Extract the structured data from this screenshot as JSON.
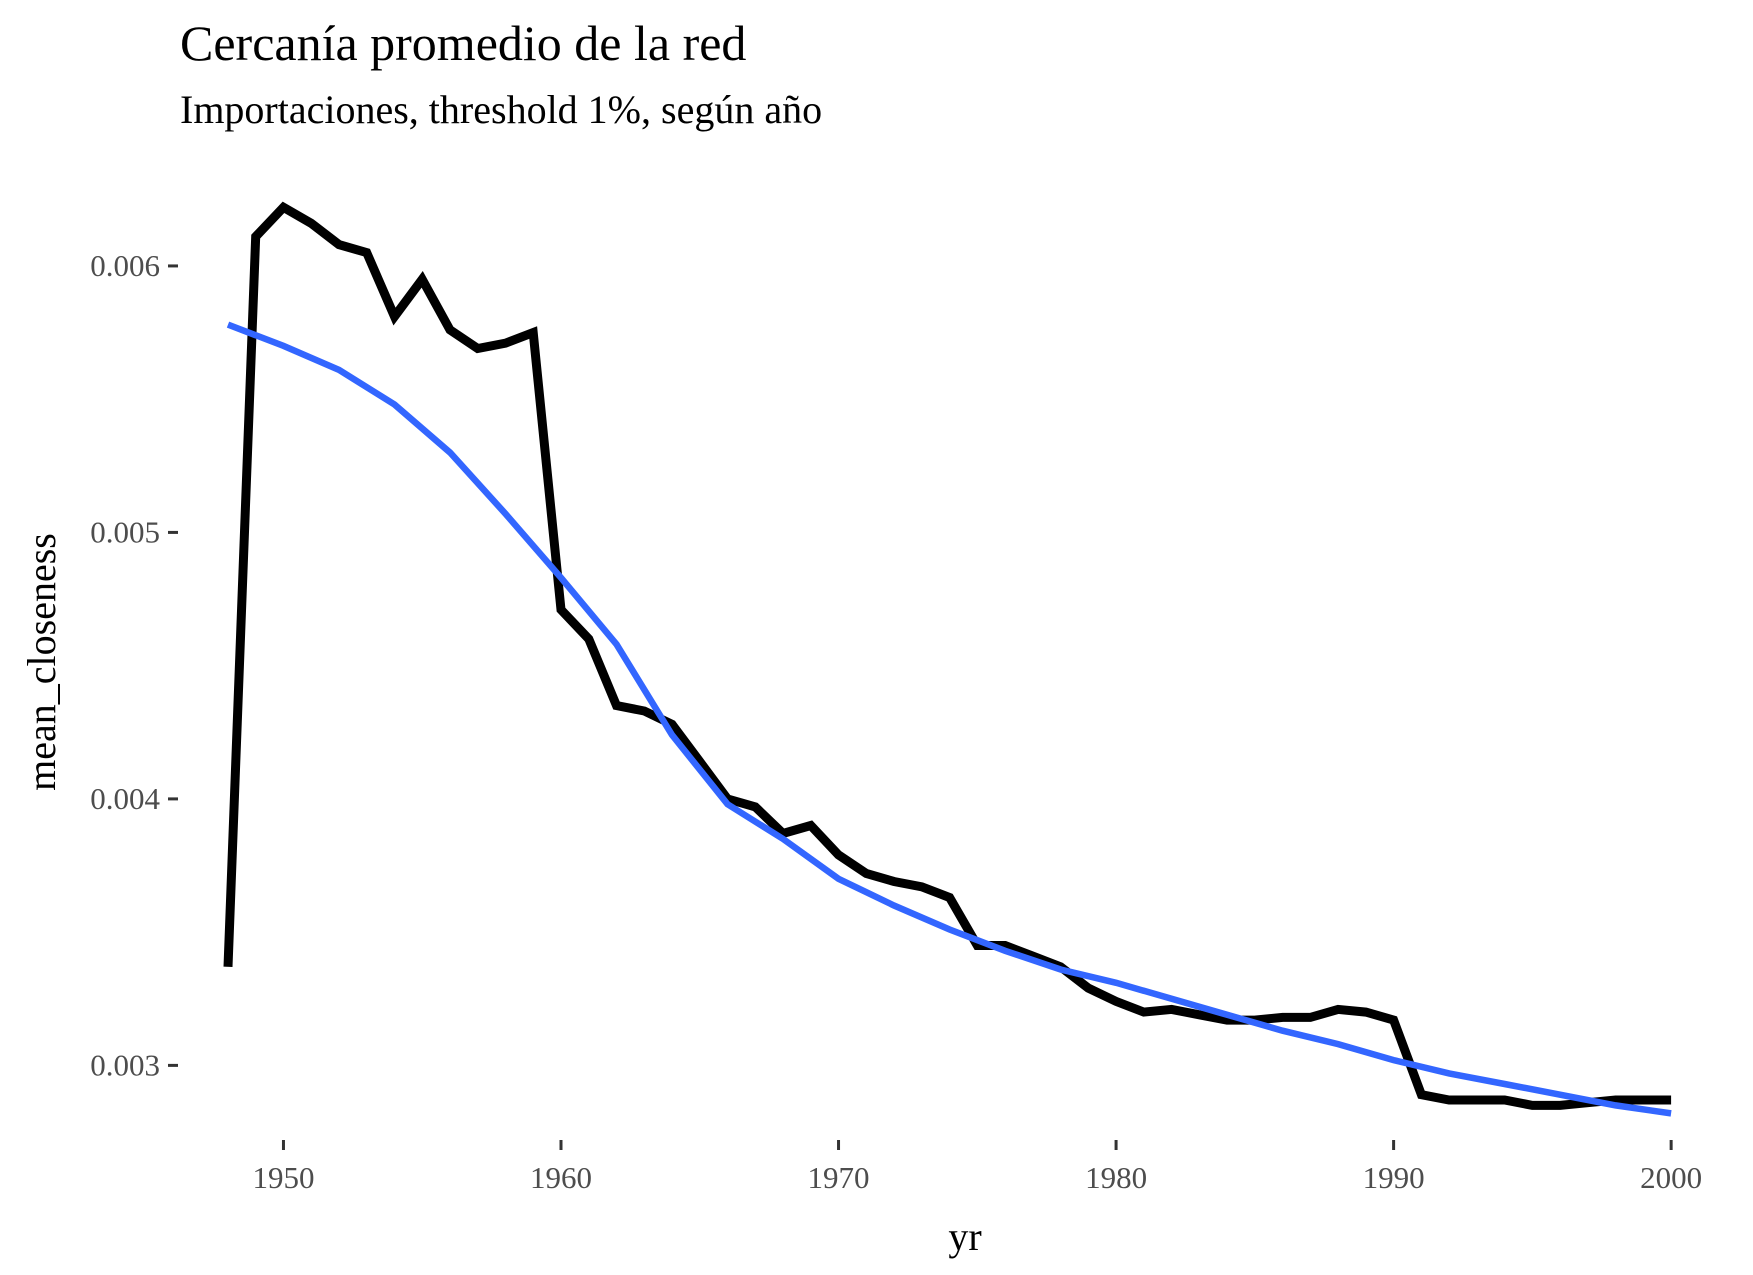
{
  "chart_data": {
    "type": "line",
    "title": "Cercanía promedio de la red",
    "subtitle": "Importaciones, threshold 1%, según año",
    "xlabel": "yr",
    "ylabel": "mean_closeness",
    "xlim": [
      1946.2,
      2001.4
    ],
    "ylim": [
      0.00272,
      0.00636
    ],
    "x_ticks": [
      1950,
      1960,
      1970,
      1980,
      1990,
      2000
    ],
    "x_tick_labels": [
      "1950",
      "1960",
      "1970",
      "1980",
      "1990",
      "2000"
    ],
    "y_ticks": [
      0.003,
      0.004,
      0.005,
      0.006
    ],
    "y_tick_labels": [
      "0.003",
      "0.004",
      "0.005",
      "0.006"
    ],
    "grid": false,
    "legend": "none",
    "series": [
      {
        "color": "#000000",
        "x": [
          1948,
          1949,
          1950,
          1951,
          1952,
          1953,
          1954,
          1955,
          1956,
          1957,
          1958,
          1959,
          1960,
          1961,
          1962,
          1963,
          1964,
          1965,
          1966,
          1967,
          1968,
          1969,
          1970,
          1971,
          1972,
          1973,
          1974,
          1975,
          1976,
          1977,
          1978,
          1979,
          1980,
          1981,
          1982,
          1983,
          1984,
          1985,
          1986,
          1987,
          1988,
          1989,
          1990,
          1991,
          1992,
          1993,
          1994,
          1995,
          1996,
          1997,
          1998,
          1999,
          2000
        ],
        "y": [
          0.00337,
          0.00611,
          0.00622,
          0.00616,
          0.00608,
          0.00605,
          0.00581,
          0.00595,
          0.00576,
          0.00569,
          0.00571,
          0.00575,
          0.00471,
          0.0046,
          0.00435,
          0.00433,
          0.00428,
          0.00414,
          0.004,
          0.00397,
          0.00387,
          0.0039,
          0.00379,
          0.00372,
          0.00369,
          0.00367,
          0.00363,
          0.00345,
          0.00345,
          0.00341,
          0.00337,
          0.00329,
          0.00324,
          0.0032,
          0.00321,
          0.00319,
          0.00317,
          0.00317,
          0.00318,
          0.00318,
          0.00321,
          0.0032,
          0.00317,
          0.00289,
          0.00287,
          0.00287,
          0.00287,
          0.00285,
          0.00285,
          0.00286,
          0.00287,
          0.00287,
          0.00287
        ]
      },
      {
        "color": "#3366FF",
        "x": [
          1948,
          1950,
          1952,
          1954,
          1956,
          1958,
          1960,
          1962,
          1964,
          1966,
          1968,
          1970,
          1972,
          1974,
          1976,
          1978,
          1980,
          1982,
          1984,
          1986,
          1988,
          1990,
          1992,
          1994,
          1996,
          1998,
          2000
        ],
        "y": [
          0.00578,
          0.0057,
          0.00561,
          0.00548,
          0.0053,
          0.00507,
          0.00483,
          0.00458,
          0.00424,
          0.00398,
          0.00385,
          0.0037,
          0.0036,
          0.00351,
          0.00343,
          0.00336,
          0.00331,
          0.00325,
          0.00319,
          0.00313,
          0.00308,
          0.00302,
          0.00297,
          0.00293,
          0.00289,
          0.00285,
          0.00282
        ]
      }
    ]
  }
}
